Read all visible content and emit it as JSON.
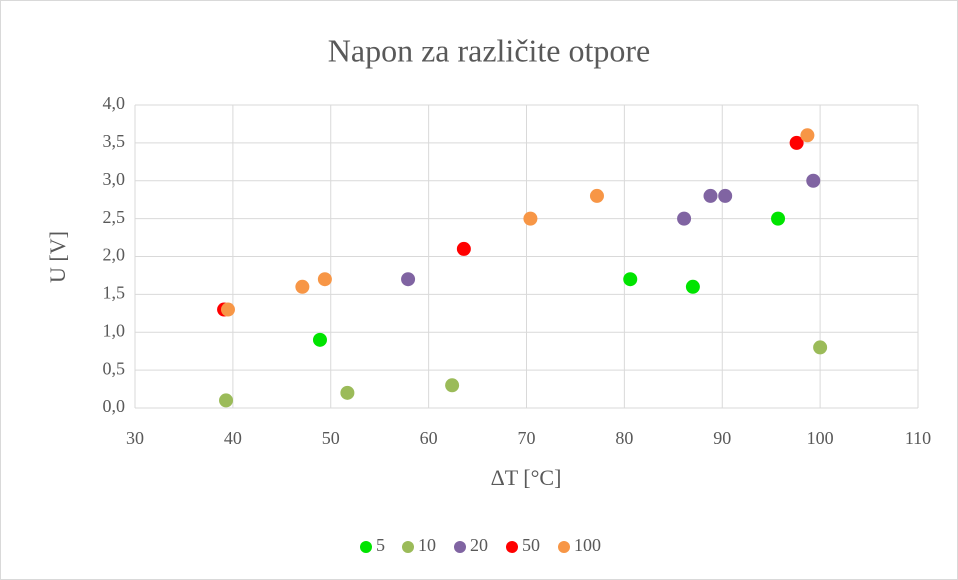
{
  "chart_data": {
    "type": "scatter",
    "title": "Napon za različite otpore",
    "xlabel": "ΔT [°C]",
    "ylabel": "U [V]",
    "xlim": [
      30,
      110
    ],
    "xticks": [
      30,
      40,
      50,
      60,
      70,
      80,
      90,
      100,
      110
    ],
    "ylim": [
      0,
      4
    ],
    "yticks": [
      {
        "value": 0,
        "label": "0,0"
      },
      {
        "value": 0.5,
        "label": "0,5"
      },
      {
        "value": 1,
        "label": "1,0"
      },
      {
        "value": 1.5,
        "label": "1,5"
      },
      {
        "value": 2,
        "label": "2,0"
      },
      {
        "value": 2.5,
        "label": "2,5"
      },
      {
        "value": 3,
        "label": "3,0"
      },
      {
        "value": 3.5,
        "label": "3,5"
      },
      {
        "value": 4,
        "label": "4,0"
      }
    ],
    "grid": true,
    "legend": "bottom",
    "series": [
      {
        "name": "5",
        "color": "#00e400",
        "x": [
          48.9,
          80.6,
          87.0,
          95.7
        ],
        "values": [
          0.9,
          1.7,
          1.6,
          2.5
        ]
      },
      {
        "name": "10",
        "color": "#9bbb59",
        "x": [
          39.3,
          51.7,
          62.4,
          100.0
        ],
        "values": [
          0.1,
          0.2,
          0.3,
          0.8
        ]
      },
      {
        "name": "20",
        "color": "#8064a2",
        "x": [
          57.9,
          86.1,
          88.8,
          90.3,
          99.3
        ],
        "values": [
          1.7,
          2.5,
          2.8,
          2.8,
          3.0
        ]
      },
      {
        "name": "50",
        "color": "#ff0000",
        "x": [
          39.1,
          63.6,
          97.6
        ],
        "values": [
          1.3,
          2.1,
          3.5
        ]
      },
      {
        "name": "100",
        "color": "#f79646",
        "x": [
          39.5,
          47.1,
          49.4,
          70.4,
          77.2,
          98.7
        ],
        "values": [
          1.3,
          1.6,
          1.7,
          2.5,
          2.8,
          3.6
        ]
      }
    ]
  }
}
